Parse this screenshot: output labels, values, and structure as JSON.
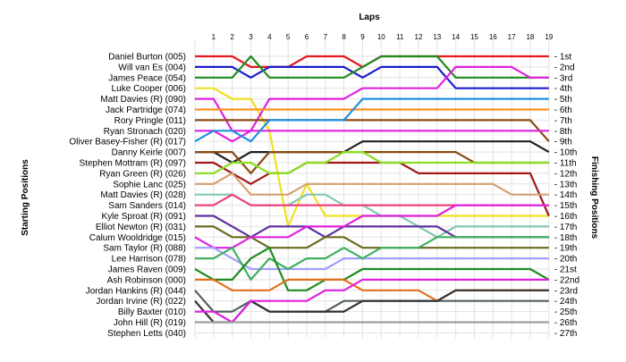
{
  "chart_data": {
    "type": "line",
    "title": "",
    "xlabel": "Laps",
    "ylabel_left": "Starting Positions",
    "ylabel_right": "Finishing Positions",
    "laps": [
      1,
      2,
      3,
      4,
      5,
      6,
      7,
      8,
      9,
      10,
      11,
      12,
      13,
      14,
      15,
      16,
      17,
      18,
      19
    ],
    "drivers": [
      "Daniel Burton (005)",
      "Will van Es (004)",
      "James Peace (054)",
      "Luke Cooper (006)",
      "Matt Davies  (R) (090)",
      "Jack Partridge (074)",
      "Rory Pringle (011)",
      "Ryan Stronach (020)",
      "Oliver Basey-Fisher (R) (017)",
      "Danny Keirle (007)",
      "Stephen Mottram (R) (097)",
      "Ryan Green (R) (026)",
      "Sophie Lanc (025)",
      "Matt Davies    (R) (028)",
      "Sam Sanders (014)",
      "Kyle Sproat (R) (091)",
      "Elliot Newton  (R) (031)",
      "Calum Wooldridge (015)",
      "Sam Taylor (R) (088)",
      "Lee Harrison (078)",
      "James Raven (009)",
      "Ash Robinson (000)",
      "Jordan Hankins (R) (044)",
      "Jordan Irvine (R) (022)",
      "Billy Baxter (010)",
      "John Hill  (R) (019)",
      "Stephen Letts (040)"
    ],
    "finishing_positions": [
      "1st",
      "2nd",
      "3rd",
      "4th",
      "5th",
      "6th",
      "7th",
      "8th",
      "9th",
      "10th",
      "11th",
      "12th",
      "13th",
      "14th",
      "15th",
      "16th",
      "17th",
      "18th",
      "19th",
      "20th",
      "21st",
      "22nd",
      "23rd",
      "24th",
      "25th",
      "26th",
      "27th"
    ],
    "series": [
      {
        "color": "#e8181f",
        "positions": [
          1,
          1,
          1,
          2,
          2,
          2,
          1,
          1,
          1,
          2,
          1,
          1,
          1,
          1,
          1,
          1,
          1,
          1,
          1,
          1
        ]
      },
      {
        "color": "#1c1ccf",
        "positions": [
          2,
          2,
          2,
          3,
          2,
          2,
          2,
          2,
          2,
          3,
          2,
          2,
          2,
          2,
          4,
          4,
          4,
          4,
          4,
          4
        ]
      },
      {
        "color": "#1f8c1f",
        "positions": [
          3,
          3,
          3,
          1,
          3,
          3,
          3,
          3,
          3,
          2,
          1,
          1,
          1,
          1,
          3,
          3,
          3,
          3,
          3,
          3
        ]
      },
      {
        "color": "#f0e020",
        "positions": [
          4,
          4,
          5,
          5,
          8,
          17,
          13,
          16,
          16,
          16,
          16,
          16,
          16,
          16,
          16,
          16,
          16,
          16,
          16,
          16
        ]
      },
      {
        "color": "#e020e0",
        "positions": [
          5,
          5,
          8,
          8,
          5,
          5,
          5,
          5,
          5,
          4,
          4,
          4,
          4,
          4,
          2,
          2,
          2,
          2,
          3,
          3
        ]
      },
      {
        "color": "#ff9020",
        "positions": [
          6,
          6,
          6,
          6,
          6,
          6,
          6,
          6,
          6,
          6,
          6,
          6,
          6,
          6,
          6,
          6,
          6,
          6,
          6,
          6
        ]
      },
      {
        "color": "#8b4a14",
        "positions": [
          7,
          7,
          7,
          7,
          7,
          7,
          7,
          7,
          7,
          7,
          7,
          7,
          7,
          7,
          7,
          7,
          7,
          7,
          7,
          9
        ]
      },
      {
        "color": "#e020e0",
        "positions": [
          8,
          8,
          9,
          8,
          8,
          8,
          8,
          8,
          8,
          8,
          8,
          8,
          8,
          8,
          8,
          8,
          8,
          8,
          8,
          8
        ]
      },
      {
        "color": "#2090e0",
        "positions": [
          9,
          8,
          8,
          9,
          7,
          7,
          7,
          7,
          7,
          5,
          5,
          5,
          5,
          5,
          5,
          5,
          5,
          5,
          5,
          5
        ]
      },
      {
        "color": "#202020",
        "positions": [
          10,
          10,
          11,
          10,
          10,
          10,
          10,
          10,
          10,
          9,
          9,
          9,
          9,
          9,
          9,
          9,
          9,
          9,
          9,
          10
        ]
      },
      {
        "color": "#8b4a14",
        "positions": [
          10,
          10,
          10,
          12,
          10,
          10,
          10,
          10,
          10,
          10,
          10,
          10,
          10,
          10,
          10,
          11,
          11,
          11,
          11,
          11
        ]
      },
      {
        "color": "#a01818",
        "positions": [
          11,
          11,
          12,
          13,
          12,
          12,
          11,
          11,
          11,
          11,
          11,
          11,
          12,
          12,
          12,
          12,
          12,
          12,
          12,
          16
        ]
      },
      {
        "color": "#88e020",
        "positions": [
          12,
          12,
          11,
          11,
          12,
          12,
          11,
          11,
          10,
          10,
          11,
          11,
          11,
          11,
          11,
          11,
          11,
          11,
          11,
          11
        ]
      },
      {
        "color": "#d4a070",
        "positions": [
          13,
          13,
          12,
          14,
          14,
          14,
          13,
          13,
          13,
          13,
          13,
          13,
          13,
          13,
          13,
          13,
          13,
          14,
          14,
          14
        ]
      },
      {
        "color": "#80c8b0",
        "positions": [
          14,
          14,
          14,
          15,
          15,
          15,
          14,
          14,
          15,
          15,
          16,
          16,
          17,
          18,
          17,
          17,
          17,
          17,
          17,
          17
        ]
      },
      {
        "color": "#f04080",
        "positions": [
          15,
          15,
          14,
          15,
          15,
          15,
          15,
          15,
          15,
          15,
          15,
          15,
          15,
          15,
          15,
          15,
          15,
          15,
          15,
          15
        ]
      },
      {
        "color": "#6030a0",
        "positions": [
          16,
          16,
          17,
          18,
          17,
          17,
          17,
          18,
          17,
          17,
          17,
          17,
          17,
          17,
          18,
          18,
          18,
          18,
          18,
          18
        ]
      },
      {
        "color": "#6a6a20",
        "positions": [
          17,
          17,
          18,
          18,
          19,
          19,
          19,
          18,
          18,
          19,
          19,
          19,
          19,
          19,
          19,
          19,
          19,
          19,
          19,
          19
        ]
      },
      {
        "color": "#e020e0",
        "positions": [
          18,
          19,
          19,
          18,
          18,
          18,
          17,
          17,
          17,
          16,
          16,
          16,
          16,
          16,
          15,
          15,
          15,
          15,
          15,
          15
        ]
      },
      {
        "color": "#a0a0ff",
        "positions": [
          19,
          19,
          20,
          21,
          21,
          21,
          21,
          21,
          20,
          20,
          20,
          20,
          20,
          20,
          20,
          20,
          20,
          20,
          20,
          20
        ]
      },
      {
        "color": "#40b060",
        "positions": [
          20,
          20,
          19,
          22,
          20,
          21,
          20,
          20,
          19,
          20,
          19,
          19,
          19,
          18,
          18,
          18,
          18,
          18,
          18,
          18
        ]
      },
      {
        "color": "#1f8c1f",
        "positions": [
          21,
          22,
          22,
          20,
          19,
          23,
          23,
          22,
          22,
          21,
          21,
          21,
          21,
          21,
          21,
          21,
          21,
          21,
          21,
          22
        ]
      },
      {
        "color": "#e07020",
        "positions": [
          22,
          22,
          23,
          23,
          23,
          22,
          22,
          22,
          22,
          23,
          23,
          23,
          23,
          24,
          23,
          23,
          23,
          23,
          23,
          23
        ]
      },
      {
        "color": "#556060",
        "positions": [
          23,
          25,
          25,
          24,
          25,
          25,
          25,
          25,
          24,
          24,
          24,
          24,
          24,
          24,
          24,
          24,
          24,
          24,
          24,
          24
        ]
      },
      {
        "color": "#303030",
        "positions": [
          24,
          26,
          26,
          24,
          25,
          25,
          25,
          25,
          25,
          24,
          24,
          24,
          24,
          24,
          23,
          23,
          23,
          23,
          23,
          23
        ]
      },
      {
        "color": "#e020e0",
        "positions": [
          25,
          25,
          26,
          24,
          24,
          24,
          24,
          23,
          23,
          22,
          22,
          22,
          22,
          22,
          22,
          22,
          22,
          22,
          22,
          22
        ]
      },
      {
        "color": "#a0a0a0",
        "positions": [
          26,
          26,
          26,
          26,
          26,
          26,
          26,
          26,
          26,
          26,
          26,
          26,
          26,
          26,
          26,
          26,
          26,
          26,
          26,
          26
        ]
      }
    ]
  }
}
